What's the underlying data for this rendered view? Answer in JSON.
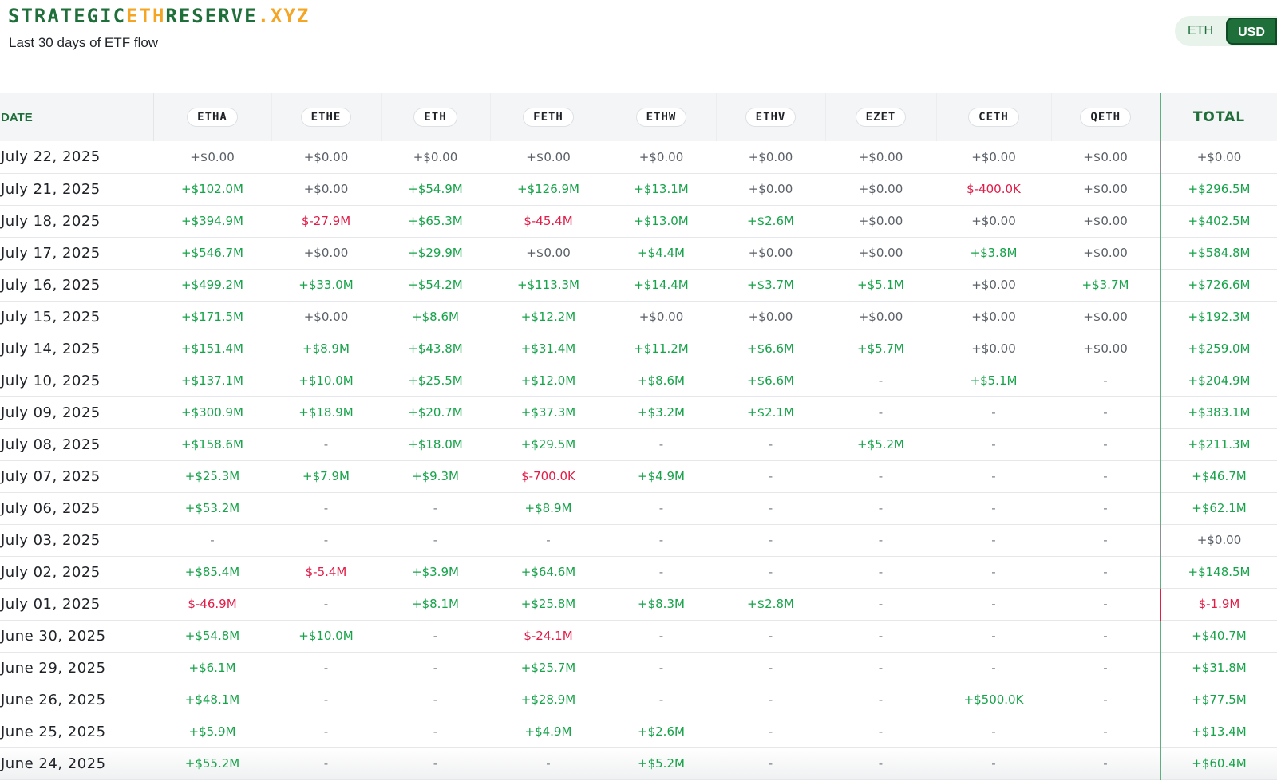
{
  "brand": {
    "part1": "STRATEGIC",
    "part2": "ETH",
    "part3": "RESERVE",
    "part4": ".XYZ",
    "accent_color": "#f5a524",
    "brand_color": "#1e6f3a"
  },
  "subtitle": "Last 30 days of ETF flow",
  "toggle": {
    "eth_label": "ETH",
    "usd_label": "USD",
    "selected": "USD"
  },
  "table": {
    "date_header": "DATE",
    "columns": [
      "ETHA",
      "ETHE",
      "ETH",
      "FETH",
      "ETHW",
      "ETHV",
      "EZET",
      "CETH",
      "QETH"
    ],
    "total_header": "TOTAL",
    "rows": [
      {
        "date": "July 22, 2025",
        "values": [
          "+$0.00",
          "+$0.00",
          "+$0.00",
          "+$0.00",
          "+$0.00",
          "+$0.00",
          "+$0.00",
          "+$0.00",
          "+$0.00"
        ],
        "total": "+$0.00"
      },
      {
        "date": "July 21, 2025",
        "values": [
          "+$102.0M",
          "+$0.00",
          "+$54.9M",
          "+$126.9M",
          "+$13.1M",
          "+$0.00",
          "+$0.00",
          "$-400.0K",
          "+$0.00"
        ],
        "total": "+$296.5M"
      },
      {
        "date": "July 18, 2025",
        "values": [
          "+$394.9M",
          "$-27.9M",
          "+$65.3M",
          "$-45.4M",
          "+$13.0M",
          "+$2.6M",
          "+$0.00",
          "+$0.00",
          "+$0.00"
        ],
        "total": "+$402.5M"
      },
      {
        "date": "July 17, 2025",
        "values": [
          "+$546.7M",
          "+$0.00",
          "+$29.9M",
          "+$0.00",
          "+$4.4M",
          "+$0.00",
          "+$0.00",
          "+$3.8M",
          "+$0.00"
        ],
        "total": "+$584.8M"
      },
      {
        "date": "July 16, 2025",
        "values": [
          "+$499.2M",
          "+$33.0M",
          "+$54.2M",
          "+$113.3M",
          "+$14.4M",
          "+$3.7M",
          "+$5.1M",
          "+$0.00",
          "+$3.7M"
        ],
        "total": "+$726.6M"
      },
      {
        "date": "July 15, 2025",
        "values": [
          "+$171.5M",
          "+$0.00",
          "+$8.6M",
          "+$12.2M",
          "+$0.00",
          "+$0.00",
          "+$0.00",
          "+$0.00",
          "+$0.00"
        ],
        "total": "+$192.3M"
      },
      {
        "date": "July 14, 2025",
        "values": [
          "+$151.4M",
          "+$8.9M",
          "+$43.8M",
          "+$31.4M",
          "+$11.2M",
          "+$6.6M",
          "+$5.7M",
          "+$0.00",
          "+$0.00"
        ],
        "total": "+$259.0M"
      },
      {
        "date": "July 10, 2025",
        "values": [
          "+$137.1M",
          "+$10.0M",
          "+$25.5M",
          "+$12.0M",
          "+$8.6M",
          "+$6.6M",
          "-",
          "+$5.1M",
          "-"
        ],
        "total": "+$204.9M"
      },
      {
        "date": "July 09, 2025",
        "values": [
          "+$300.9M",
          "+$18.9M",
          "+$20.7M",
          "+$37.3M",
          "+$3.2M",
          "+$2.1M",
          "-",
          "-",
          "-"
        ],
        "total": "+$383.1M"
      },
      {
        "date": "July 08, 2025",
        "values": [
          "+$158.6M",
          "-",
          "+$18.0M",
          "+$29.5M",
          "-",
          "-",
          "+$5.2M",
          "-",
          "-"
        ],
        "total": "+$211.3M"
      },
      {
        "date": "July 07, 2025",
        "values": [
          "+$25.3M",
          "+$7.9M",
          "+$9.3M",
          "$-700.0K",
          "+$4.9M",
          "-",
          "-",
          "-",
          "-"
        ],
        "total": "+$46.7M"
      },
      {
        "date": "July 06, 2025",
        "values": [
          "+$53.2M",
          "-",
          "-",
          "+$8.9M",
          "-",
          "-",
          "-",
          "-",
          "-"
        ],
        "total": "+$62.1M"
      },
      {
        "date": "July 03, 2025",
        "values": [
          "-",
          "-",
          "-",
          "-",
          "-",
          "-",
          "-",
          "-",
          "-"
        ],
        "total": "+$0.00"
      },
      {
        "date": "July 02, 2025",
        "values": [
          "+$85.4M",
          "$-5.4M",
          "+$3.9M",
          "+$64.6M",
          "-",
          "-",
          "-",
          "-",
          "-"
        ],
        "total": "+$148.5M"
      },
      {
        "date": "July 01, 2025",
        "values": [
          "$-46.9M",
          "-",
          "+$8.1M",
          "+$25.8M",
          "+$8.3M",
          "+$2.8M",
          "-",
          "-",
          "-"
        ],
        "total": "$-1.9M"
      },
      {
        "date": "June 30, 2025",
        "values": [
          "+$54.8M",
          "+$10.0M",
          "-",
          "$-24.1M",
          "-",
          "-",
          "-",
          "-",
          "-"
        ],
        "total": "+$40.7M"
      },
      {
        "date": "June 29, 2025",
        "values": [
          "+$6.1M",
          "-",
          "-",
          "+$25.7M",
          "-",
          "-",
          "-",
          "-",
          "-"
        ],
        "total": "+$31.8M"
      },
      {
        "date": "June 26, 2025",
        "values": [
          "+$48.1M",
          "-",
          "-",
          "+$28.9M",
          "-",
          "-",
          "-",
          "+$500.0K",
          "-"
        ],
        "total": "+$77.5M"
      },
      {
        "date": "June 25, 2025",
        "values": [
          "+$5.9M",
          "-",
          "-",
          "+$4.9M",
          "+$2.6M",
          "-",
          "-",
          "-",
          "-"
        ],
        "total": "+$13.4M"
      },
      {
        "date": "June 24, 2025",
        "values": [
          "+$55.2M",
          "-",
          "-",
          "-",
          "+$5.2M",
          "-",
          "-",
          "-",
          "-"
        ],
        "total": "+$60.4M"
      }
    ]
  }
}
